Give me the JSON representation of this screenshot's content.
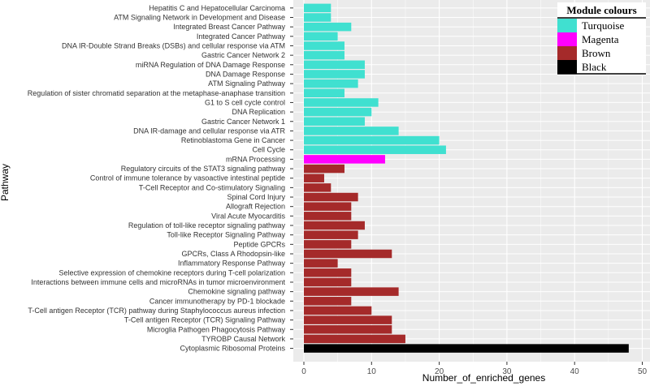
{
  "chart_data": {
    "type": "bar",
    "orientation": "horizontal",
    "title": "",
    "xlabel": "Number_of_enriched_genes",
    "ylabel": "Pathway",
    "xlim": [
      0,
      50
    ],
    "xticks": [
      "0",
      "10",
      "20",
      "30",
      "40",
      "50"
    ],
    "grid": true,
    "legend": {
      "title": "Module colours",
      "position": "top-right",
      "entries": [
        {
          "name": "Turquoise",
          "color": "#40E0D0"
        },
        {
          "name": "Magenta",
          "color": "#FF00FF"
        },
        {
          "name": "Brown",
          "color": "#A52A2A"
        },
        {
          "name": "Black",
          "color": "#000000"
        }
      ]
    },
    "bars": [
      {
        "label": "Hepatitis C and Hepatocellular Carcinoma",
        "value": 4,
        "module": "Turquoise"
      },
      {
        "label": "ATM Signaling Network in Development and Disease",
        "value": 4,
        "module": "Turquoise"
      },
      {
        "label": "Integrated Breast Cancer Pathway",
        "value": 7,
        "module": "Turquoise"
      },
      {
        "label": "Integrated Cancer Pathway",
        "value": 5,
        "module": "Turquoise"
      },
      {
        "label": "DNA IR-Double Strand Breaks (DSBs) and cellular response via ATM",
        "value": 6,
        "module": "Turquoise"
      },
      {
        "label": "Gastric Cancer Network 2",
        "value": 6,
        "module": "Turquoise"
      },
      {
        "label": "miRNA Regulation of DNA Damage Response",
        "value": 9,
        "module": "Turquoise"
      },
      {
        "label": "DNA Damage Response",
        "value": 9,
        "module": "Turquoise"
      },
      {
        "label": "ATM Signaling Pathway",
        "value": 8,
        "module": "Turquoise"
      },
      {
        "label": "Regulation of sister chromatid separation at the metaphase-anaphase transition",
        "value": 6,
        "module": "Turquoise"
      },
      {
        "label": "G1 to S cell cycle control",
        "value": 11,
        "module": "Turquoise"
      },
      {
        "label": "DNA Replication",
        "value": 10,
        "module": "Turquoise"
      },
      {
        "label": "Gastric Cancer Network 1",
        "value": 9,
        "module": "Turquoise"
      },
      {
        "label": "DNA IR-damage and cellular response via ATR",
        "value": 14,
        "module": "Turquoise"
      },
      {
        "label": "Retinoblastoma Gene in Cancer",
        "value": 20,
        "module": "Turquoise"
      },
      {
        "label": "Cell Cycle",
        "value": 21,
        "module": "Turquoise"
      },
      {
        "label": "mRNA Processing",
        "value": 12,
        "module": "Magenta"
      },
      {
        "label": "Regulatory circuits of the STAT3 signaling pathway",
        "value": 6,
        "module": "Brown"
      },
      {
        "label": "Control of immune tolerance by vasoactive intestinal peptide",
        "value": 3,
        "module": "Brown"
      },
      {
        "label": "T-Cell Receptor and Co-stimulatory Signaling",
        "value": 4,
        "module": "Brown"
      },
      {
        "label": "Spinal Cord Injury",
        "value": 8,
        "module": "Brown"
      },
      {
        "label": "Allograft Rejection",
        "value": 7,
        "module": "Brown"
      },
      {
        "label": "Viral Acute Myocarditis",
        "value": 7,
        "module": "Brown"
      },
      {
        "label": "Regulation of toll-like receptor signaling pathway",
        "value": 9,
        "module": "Brown"
      },
      {
        "label": "Toll-like Receptor Signaling Pathway",
        "value": 8,
        "module": "Brown"
      },
      {
        "label": "Peptide GPCRs",
        "value": 7,
        "module": "Brown"
      },
      {
        "label": "GPCRs, Class A Rhodopsin-like",
        "value": 13,
        "module": "Brown"
      },
      {
        "label": "Inflammatory Response Pathway",
        "value": 5,
        "module": "Brown"
      },
      {
        "label": "Selective expression of chemokine receptors during T-cell polarization",
        "value": 7,
        "module": "Brown"
      },
      {
        "label": "Interactions between immune cells and microRNAs in tumor microenvironment",
        "value": 7,
        "module": "Brown"
      },
      {
        "label": "Chemokine signaling pathway",
        "value": 14,
        "module": "Brown"
      },
      {
        "label": "Cancer immunotherapy by PD-1 blockade",
        "value": 7,
        "module": "Brown"
      },
      {
        "label": "T-Cell antigen Receptor (TCR) pathway during Staphylococcus aureus infection",
        "value": 10,
        "module": "Brown"
      },
      {
        "label": "T-Cell antigen Receptor (TCR)  Signaling Pathway",
        "value": 13,
        "module": "Brown"
      },
      {
        "label": "Microglia Pathogen Phagocytosis Pathway",
        "value": 13,
        "module": "Brown"
      },
      {
        "label": "TYROBP Causal Network",
        "value": 15,
        "module": "Brown"
      },
      {
        "label": "Cytoplasmic Ribosomal Proteins",
        "value": 48,
        "module": "Black"
      }
    ]
  }
}
